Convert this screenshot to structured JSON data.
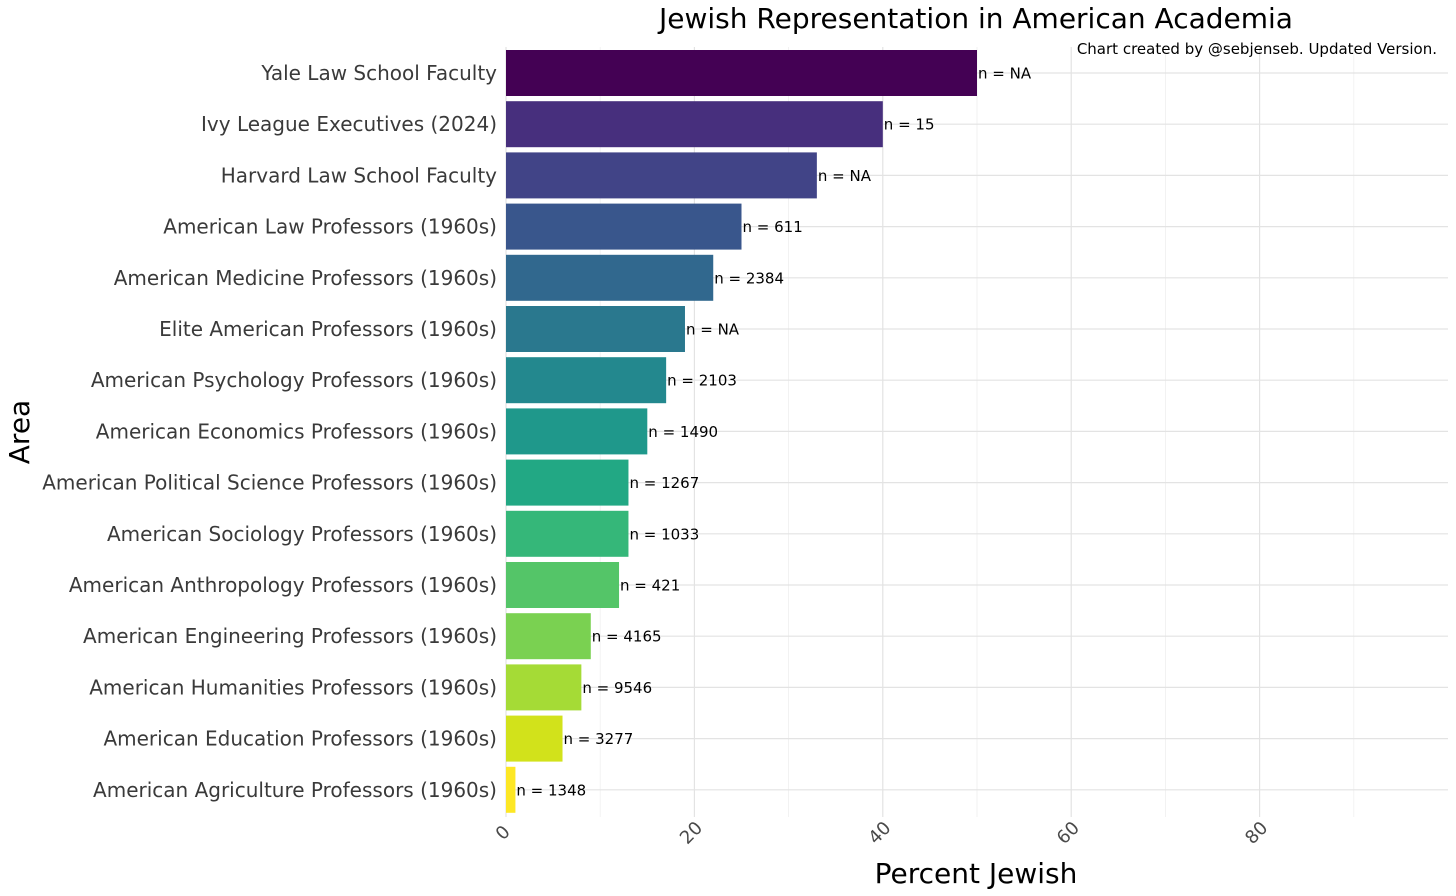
{
  "chart_data": {
    "type": "bar",
    "orientation": "horizontal",
    "title": "Jewish Representation in American Academia",
    "caption": "Chart created by @sebjenseb. Updated Version.",
    "xlabel": "Percent Jewish",
    "ylabel": "Area",
    "xlim": [
      0,
      100
    ],
    "xticks": [
      0,
      20,
      40,
      60,
      80
    ],
    "grid": true,
    "legend": "none",
    "categories": [
      "Yale Law School Faculty",
      "Ivy League Executives (2024)",
      "Harvard Law School Faculty",
      "American Law Professors (1960s)",
      "American Medicine Professors (1960s)",
      "Elite American Professors (1960s)",
      "American Psychology Professors (1960s)",
      "American Economics Professors (1960s)",
      "American Political Science Professors (1960s)",
      "American Sociology Professors (1960s)",
      "American Anthropology Professors (1960s)",
      "American Engineering Professors (1960s)",
      "American Humanities Professors (1960s)",
      "American Education Professors (1960s)",
      "American Agriculture Professors (1960s)"
    ],
    "values": [
      50,
      40,
      33,
      25,
      22,
      19,
      17,
      15,
      13,
      13,
      12,
      9,
      8,
      6,
      1
    ],
    "bar_labels": [
      "n = NA",
      "n = 15",
      "n = NA",
      "n = 611",
      "n = 2384",
      "n = NA",
      "n = 2103",
      "n = 1490",
      "n = 1267",
      "n = 1033",
      "n = 421",
      "n = 4165",
      "n = 9546",
      "n = 3277",
      "n = 1348"
    ],
    "colors": [
      "#440154",
      "#481a6c",
      "#472f7d",
      "#414487",
      "#39568c",
      "#31688e",
      "#2a788e",
      "#23888e",
      "#1f988b",
      "#22a884",
      "#35b779",
      "#54c568",
      "#7ad151",
      "#a5db36",
      "#d2e21b",
      "#fde725"
    ]
  }
}
